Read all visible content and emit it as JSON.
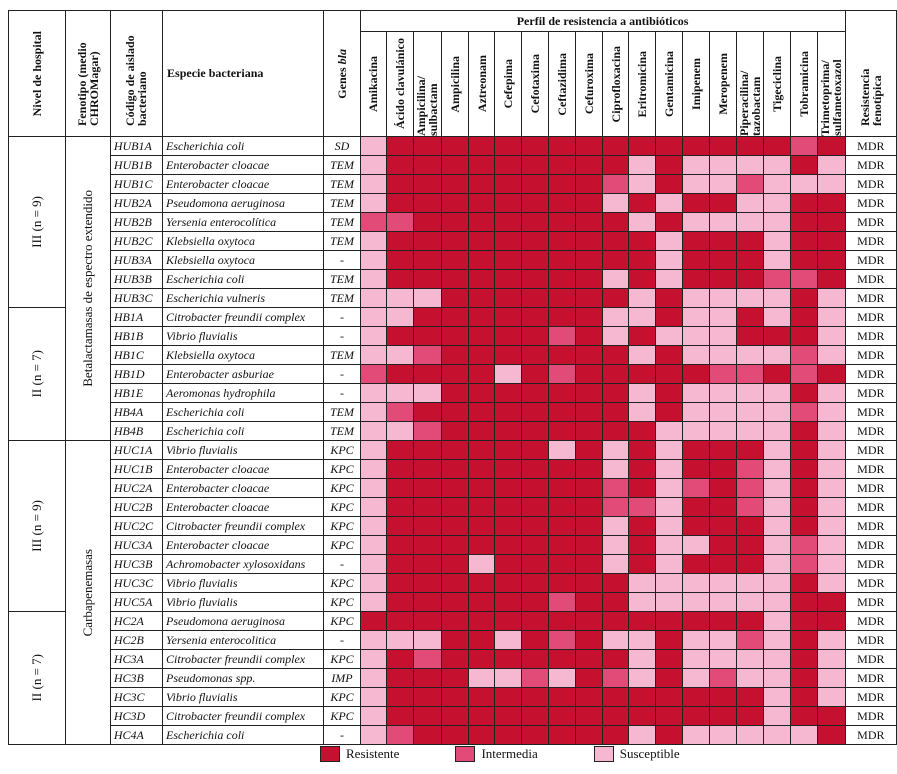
{
  "header": {
    "level": "Nivel de hospital",
    "phenotype": "Fenotipo (medio CHROMagar)",
    "code": "Código de aislado bacteriano",
    "species": "Especie bacteriana",
    "genes": "Genes",
    "genes_italic": "bla",
    "profile": "Perfil de resistencia a antibióticos",
    "resistance": "Resistencia fenotípica"
  },
  "antibiotics": [
    "Amikacina",
    "Ácido clavulánico",
    "Ampicilina/ sulbactam",
    "Ampicilina",
    "Aztreonam",
    "Cefepima",
    "Cefotaxima",
    "Ceftazidima",
    "Cefuroxima",
    "Ciprofloxacina",
    "Eritromicina",
    "Gentamicina",
    "Imipenem",
    "Meropenem",
    "Piperacilina/ tazobactam",
    "Tigeciclina",
    "Tobramicina",
    "Trimetoprima/ sulfametoxazol"
  ],
  "legend": [
    {
      "label": "Resistente",
      "color": "#c5102f"
    },
    {
      "label": "Intermedia",
      "color": "#e24a78"
    },
    {
      "label": "Susceptible",
      "color": "#f5b8d0"
    }
  ],
  "phenotypes": [
    {
      "label": "Betalactamasas de espectro extendido",
      "levels": [
        {
          "label": "III (n = 9)",
          "rows": [
            {
              "code": "HUB1A",
              "species": "Escherichia coli",
              "gene": "SD",
              "profile": [
                2,
                0,
                0,
                0,
                0,
                0,
                0,
                0,
                0,
                0,
                0,
                0,
                0,
                0,
                0,
                0,
                1,
                0
              ],
              "resistance": "MDR"
            },
            {
              "code": "HUB1B",
              "species": "Enterobacter cloacae",
              "gene": "TEM",
              "profile": [
                2,
                0,
                0,
                0,
                0,
                0,
                0,
                0,
                0,
                0,
                2,
                0,
                2,
                2,
                2,
                2,
                0,
                2
              ],
              "resistance": "MDR"
            },
            {
              "code": "HUB1C",
              "species": "Enterobacter cloacae",
              "gene": "TEM",
              "profile": [
                2,
                0,
                0,
                0,
                0,
                0,
                0,
                0,
                0,
                1,
                2,
                0,
                2,
                2,
                1,
                2,
                2,
                2
              ],
              "resistance": "MDR"
            },
            {
              "code": "HUB2A",
              "species": "Pseudomona aeruginosa",
              "gene": "TEM",
              "profile": [
                2,
                0,
                0,
                0,
                0,
                0,
                0,
                0,
                0,
                2,
                0,
                2,
                0,
                0,
                2,
                2,
                0,
                0
              ],
              "resistance": "MDR"
            },
            {
              "code": "HUB2B",
              "species": "Yersenia enterocolítica",
              "gene": "TEM",
              "profile": [
                1,
                1,
                0,
                0,
                0,
                0,
                0,
                0,
                0,
                0,
                2,
                0,
                2,
                2,
                2,
                2,
                0,
                0
              ],
              "resistance": "MDR"
            },
            {
              "code": "HUB2C",
              "species": "Klebsiella oxytoca",
              "gene": "TEM",
              "profile": [
                2,
                0,
                0,
                0,
                0,
                0,
                0,
                0,
                0,
                0,
                0,
                2,
                0,
                0,
                0,
                2,
                0,
                0
              ],
              "resistance": "MDR"
            },
            {
              "code": "HUB3A",
              "species": "Klebsiella oxytoca",
              "gene": "-",
              "profile": [
                2,
                0,
                0,
                0,
                0,
                0,
                0,
                0,
                0,
                0,
                0,
                2,
                0,
                0,
                0,
                2,
                0,
                0
              ],
              "resistance": "MDR"
            },
            {
              "code": "HUB3B",
              "species": "Escherichia coli",
              "gene": "TEM",
              "profile": [
                2,
                0,
                0,
                0,
                0,
                0,
                0,
                0,
                0,
                2,
                0,
                2,
                0,
                0,
                0,
                1,
                1,
                0
              ],
              "resistance": "MDR"
            },
            {
              "code": "HUB3C",
              "species": "Escherichia vulneris",
              "gene": "TEM",
              "profile": [
                2,
                2,
                2,
                0,
                0,
                0,
                0,
                0,
                0,
                0,
                2,
                0,
                2,
                2,
                2,
                2,
                0,
                2
              ],
              "resistance": "MDR"
            }
          ]
        },
        {
          "label": "II (n = 7)",
          "rows": [
            {
              "code": "HB1A",
              "species": "Citrobacter freundii complex",
              "gene": "-",
              "profile": [
                2,
                2,
                0,
                0,
                0,
                0,
                0,
                0,
                0,
                2,
                2,
                0,
                2,
                2,
                0,
                2,
                0,
                2
              ],
              "resistance": "MDR"
            },
            {
              "code": "HB1B",
              "species": "Vibrio fluvialis",
              "gene": "-",
              "profile": [
                2,
                0,
                0,
                0,
                0,
                0,
                0,
                1,
                0,
                2,
                0,
                2,
                2,
                2,
                0,
                0,
                0,
                2
              ],
              "resistance": "MDR"
            },
            {
              "code": "HB1C",
              "species": "Klebsiella oxytoca",
              "gene": "TEM",
              "profile": [
                2,
                2,
                1,
                0,
                0,
                0,
                0,
                0,
                0,
                0,
                2,
                0,
                2,
                2,
                2,
                2,
                1,
                2
              ],
              "resistance": "MDR"
            },
            {
              "code": "HB1D",
              "species": "Enterobacter asburiae",
              "gene": "-",
              "profile": [
                1,
                0,
                0,
                0,
                0,
                2,
                0,
                1,
                0,
                0,
                0,
                0,
                0,
                1,
                1,
                0,
                1,
                0
              ],
              "resistance": "MDR"
            },
            {
              "code": "HB1E",
              "species": "Aeromonas hydrophila",
              "gene": "-",
              "profile": [
                2,
                2,
                2,
                0,
                0,
                0,
                0,
                0,
                0,
                0,
                2,
                0,
                2,
                2,
                2,
                2,
                0,
                2
              ],
              "resistance": "MDR"
            },
            {
              "code": "HB4A",
              "species": "Escherichia coli",
              "gene": "TEM",
              "profile": [
                2,
                1,
                0,
                0,
                0,
                0,
                0,
                0,
                0,
                0,
                2,
                0,
                2,
                2,
                2,
                2,
                1,
                2
              ],
              "resistance": "MDR"
            },
            {
              "code": "HB4B",
              "species": "Escherichia coli",
              "gene": "TEM",
              "profile": [
                2,
                2,
                1,
                0,
                0,
                0,
                0,
                0,
                0,
                0,
                0,
                2,
                2,
                2,
                2,
                2,
                0,
                2
              ],
              "resistance": "MDR"
            }
          ]
        }
      ]
    },
    {
      "label": "Carbapenemasas",
      "levels": [
        {
          "label": "III (n = 9)",
          "rows": [
            {
              "code": "HUC1A",
              "species": "Vibrio fluvialis",
              "gene": "KPC",
              "profile": [
                2,
                0,
                0,
                0,
                0,
                0,
                0,
                2,
                0,
                2,
                0,
                2,
                0,
                0,
                0,
                2,
                0,
                2
              ],
              "resistance": "MDR"
            },
            {
              "code": "HUC1B",
              "species": "Enterobacter cloacae",
              "gene": "KPC",
              "profile": [
                2,
                0,
                0,
                0,
                0,
                0,
                0,
                0,
                0,
                2,
                0,
                2,
                0,
                0,
                1,
                2,
                0,
                2
              ],
              "resistance": "MDR"
            },
            {
              "code": "HUC2A",
              "species": "Enterobacter cloacae",
              "gene": "KPC",
              "profile": [
                2,
                0,
                0,
                0,
                0,
                0,
                0,
                0,
                0,
                1,
                0,
                2,
                1,
                0,
                1,
                2,
                0,
                2
              ],
              "resistance": "MDR"
            },
            {
              "code": "HUC2B",
              "species": "Enterobacter cloacae",
              "gene": "KPC",
              "profile": [
                2,
                0,
                0,
                0,
                0,
                0,
                0,
                0,
                0,
                1,
                1,
                2,
                0,
                0,
                1,
                2,
                0,
                2
              ],
              "resistance": "MDR"
            },
            {
              "code": "HUC2C",
              "species": "Citrobacter freundii complex",
              "gene": "KPC",
              "profile": [
                2,
                0,
                0,
                0,
                0,
                0,
                0,
                0,
                0,
                2,
                0,
                2,
                0,
                0,
                0,
                2,
                0,
                2
              ],
              "resistance": "MDR"
            },
            {
              "code": "HUC3A",
              "species": "Enterobacter cloacae",
              "gene": "KPC",
              "profile": [
                2,
                0,
                0,
                0,
                0,
                0,
                0,
                0,
                0,
                2,
                0,
                2,
                2,
                0,
                0,
                2,
                1,
                2
              ],
              "resistance": "MDR"
            },
            {
              "code": "HUC3B",
              "species": "Achromobacter xylosoxidans",
              "gene": "-",
              "profile": [
                2,
                0,
                0,
                0,
                2,
                0,
                0,
                0,
                0,
                2,
                0,
                2,
                0,
                0,
                0,
                2,
                1,
                2
              ],
              "resistance": "MDR"
            },
            {
              "code": "HUC3C",
              "species": "Vibrio fluvialis",
              "gene": "KPC",
              "profile": [
                2,
                0,
                0,
                0,
                0,
                0,
                0,
                0,
                0,
                0,
                2,
                2,
                2,
                2,
                2,
                2,
                0,
                2
              ],
              "resistance": "MDR"
            },
            {
              "code": "HUC5A",
              "species": "Vibrio fluvialis",
              "gene": "KPC",
              "profile": [
                2,
                0,
                0,
                0,
                0,
                0,
                0,
                1,
                0,
                0,
                2,
                2,
                2,
                2,
                2,
                2,
                0,
                0
              ],
              "resistance": "MDR"
            }
          ]
        },
        {
          "label": "II (n = 7)",
          "rows": [
            {
              "code": "HC2A",
              "species": "Pseudomona aeruginosa",
              "gene": "KPC",
              "profile": [
                0,
                0,
                0,
                0,
                0,
                0,
                0,
                0,
                0,
                0,
                0,
                0,
                0,
                0,
                0,
                2,
                0,
                0
              ],
              "resistance": "MDR"
            },
            {
              "code": "HC2B",
              "species": "Yersenia enterocolitica",
              "gene": "-",
              "profile": [
                2,
                2,
                2,
                0,
                0,
                2,
                0,
                1,
                0,
                2,
                2,
                0,
                2,
                2,
                1,
                2,
                0,
                2
              ],
              "resistance": "MDR"
            },
            {
              "code": "HC3A",
              "species": "Citrobacter freundii complex",
              "gene": "KPC",
              "profile": [
                2,
                0,
                1,
                0,
                0,
                0,
                0,
                0,
                0,
                0,
                2,
                0,
                2,
                2,
                2,
                2,
                0,
                2
              ],
              "resistance": "MDR"
            },
            {
              "code": "HC3B",
              "species": "Pseudomonas spp.",
              "gene": "IMP",
              "profile": [
                2,
                0,
                0,
                0,
                2,
                2,
                1,
                2,
                0,
                1,
                2,
                0,
                2,
                1,
                2,
                2,
                0,
                2
              ],
              "resistance": "MDR"
            },
            {
              "code": "HC3C",
              "species": "Vibrio fluvialis",
              "gene": "KPC",
              "profile": [
                2,
                0,
                0,
                0,
                0,
                0,
                0,
                0,
                0,
                0,
                0,
                0,
                0,
                0,
                0,
                2,
                0,
                2
              ],
              "resistance": "MDR"
            },
            {
              "code": "HC3D",
              "species": "Citrobacter freundii complex",
              "gene": "KPC",
              "profile": [
                2,
                0,
                0,
                0,
                0,
                0,
                0,
                0,
                0,
                0,
                0,
                0,
                0,
                0,
                0,
                2,
                0,
                0
              ],
              "resistance": "MDR"
            },
            {
              "code": "HC4A",
              "species": "Escherichia coli",
              "gene": "-",
              "profile": [
                2,
                1,
                0,
                0,
                0,
                0,
                0,
                0,
                0,
                0,
                2,
                0,
                2,
                2,
                2,
                2,
                2,
                0
              ],
              "resistance": "MDR"
            }
          ]
        }
      ]
    }
  ]
}
